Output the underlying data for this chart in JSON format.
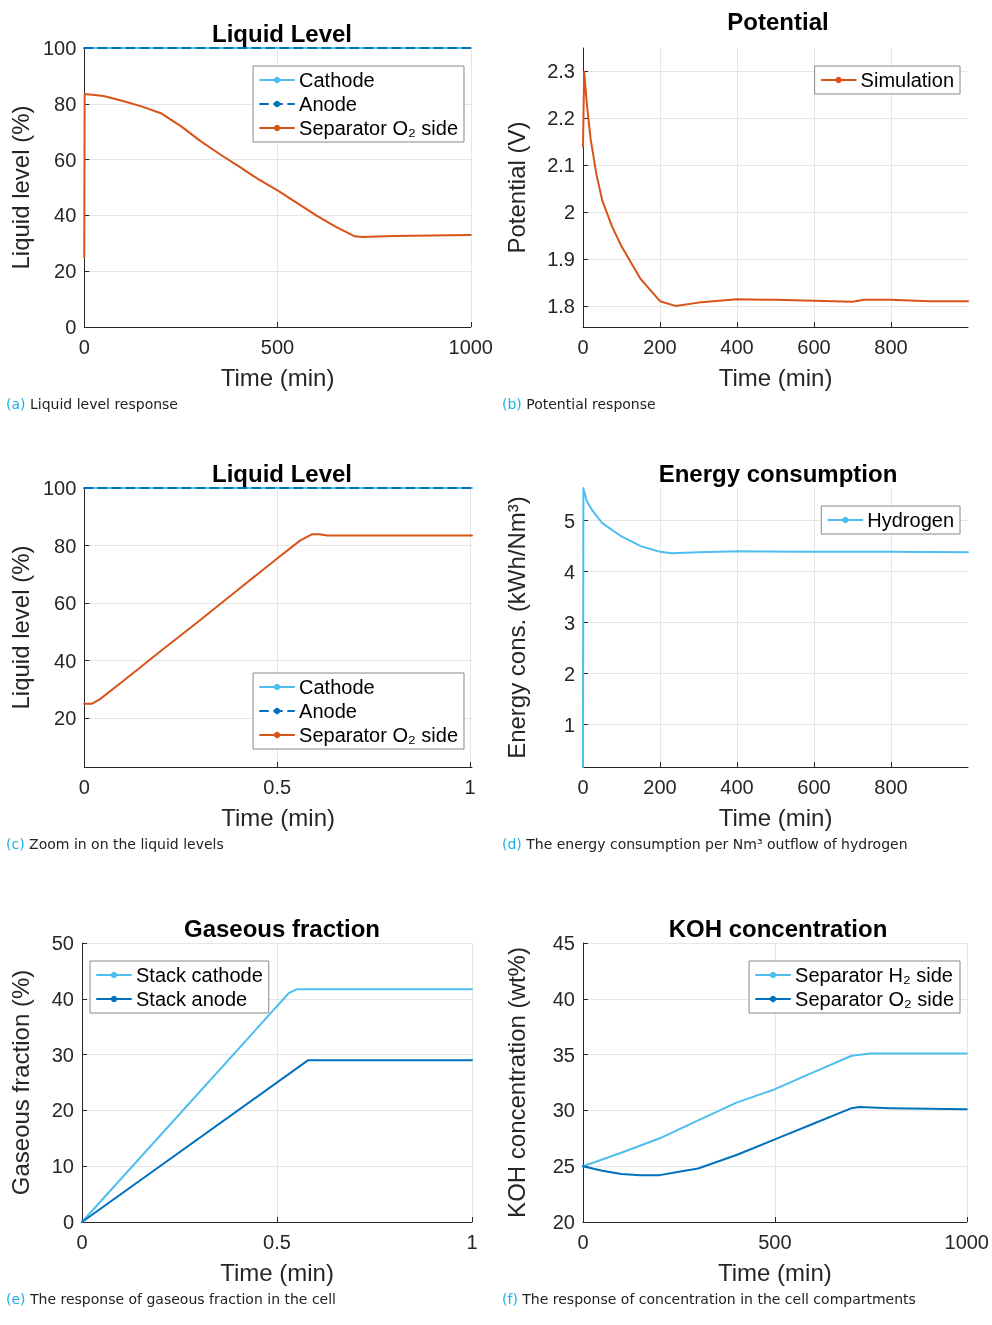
{
  "chart_data": [
    {
      "type": "line",
      "title": "Liquid Level",
      "xlabel": "Time (min)",
      "ylabel": "Liquid level (%)",
      "xlim": [
        0,
        1000
      ],
      "xticks": [
        0,
        500,
        1000
      ],
      "ylim": [
        0,
        100
      ],
      "yticks": [
        0,
        20,
        40,
        60,
        80,
        100
      ],
      "grid": true,
      "legend": "top right",
      "annotations": [
        "(a) Liquid level response"
      ],
      "series": [
        {
          "name": "Cathode",
          "color": "#4dbeee",
          "x": [
            0,
            1000
          ],
          "values": [
            100,
            100
          ]
        },
        {
          "name": "Anode",
          "color": "#0072bd",
          "line_style": "dashed",
          "x": [
            0,
            1000
          ],
          "values": [
            100,
            100
          ]
        },
        {
          "name": "Separator O₂ side",
          "color": "#d95319",
          "x": [
            0,
            1,
            50,
            100,
            150,
            200,
            250,
            300,
            350,
            400,
            450,
            500,
            550,
            600,
            650,
            700,
            720,
            800,
            1000
          ],
          "values": [
            25,
            83.5,
            82.8,
            81,
            79,
            76.5,
            72,
            66.7,
            62,
            57.6,
            53,
            49,
            44.5,
            40,
            36,
            32.5,
            32.3,
            32.6,
            33
          ]
        }
      ]
    },
    {
      "type": "line",
      "title": "Potential",
      "xlabel": "Time (min)",
      "ylabel": "Potential (V)",
      "xlim": [
        0,
        1000
      ],
      "xticks": [
        0,
        200,
        400,
        600,
        800
      ],
      "ylim": [
        1.755,
        2.35
      ],
      "yticks": [
        1.8,
        1.9,
        2,
        2.1,
        2.2,
        2.3
      ],
      "grid": true,
      "legend": "top right",
      "annotations": [
        "(b) Potential response"
      ],
      "series": [
        {
          "name": "Simulation",
          "color": "#d95319",
          "x": [
            0,
            3,
            10,
            20,
            35,
            50,
            75,
            100,
            150,
            200,
            240,
            300,
            400,
            500,
            600,
            700,
            730,
            800,
            900,
            1000
          ],
          "values": [
            2.14,
            2.3,
            2.23,
            2.155,
            2.08,
            2.025,
            1.97,
            1.927,
            1.857,
            1.81,
            1.8,
            1.807,
            1.814,
            1.813,
            1.811,
            1.809,
            1.813,
            1.813,
            1.81,
            1.81
          ]
        }
      ]
    },
    {
      "type": "line",
      "title": "Liquid Level",
      "xlabel": "Time (min)",
      "ylabel": "Liquid level (%)",
      "xlim": [
        0,
        1.005
      ],
      "xticks": [
        0,
        0.5,
        1
      ],
      "ylim": [
        3,
        100
      ],
      "yticks": [
        20,
        40,
        60,
        80,
        100
      ],
      "grid": true,
      "legend": "bottom right",
      "annotations": [
        "(c) Zoom in on the liquid levels"
      ],
      "series": [
        {
          "name": "Cathode",
          "color": "#4dbeee",
          "x": [
            0,
            1.005
          ],
          "values": [
            100,
            100
          ]
        },
        {
          "name": "Anode",
          "color": "#0072bd",
          "line_style": "dashed",
          "x": [
            0,
            1.005
          ],
          "values": [
            100,
            100
          ]
        },
        {
          "name": "Separator O₂ side",
          "color": "#d95319",
          "x": [
            0,
            0.02,
            0.04,
            0.1,
            0.2,
            0.3,
            0.4,
            0.5,
            0.56,
            0.59,
            0.61,
            0.63,
            1.005
          ],
          "values": [
            25,
            25,
            26.5,
            32.8,
            43.5,
            54,
            64.8,
            75.5,
            81.8,
            83.9,
            83.9,
            83.5,
            83.5
          ]
        }
      ]
    },
    {
      "type": "line",
      "title": "Energy consumption",
      "xlabel": "Time (min)",
      "ylabel": "Energy cons. (kWh/Nm³)",
      "xlim": [
        0,
        1000
      ],
      "xticks": [
        0,
        200,
        400,
        600,
        800
      ],
      "ylim": [
        0.17,
        5.64
      ],
      "yticks": [
        1,
        2,
        3,
        4,
        5
      ],
      "grid": true,
      "legend": "top right",
      "annotations": [
        "(d) The energy consumption per Nm³ outflow of hydrogen"
      ],
      "series": [
        {
          "name": "Hydrogen",
          "color": "#4dbeee",
          "x": [
            0,
            1,
            10,
            25,
            50,
            100,
            150,
            200,
            230,
            300,
            400,
            600,
            700,
            800,
            1000
          ],
          "values": [
            0.17,
            5.63,
            5.38,
            5.19,
            4.95,
            4.69,
            4.5,
            4.39,
            4.36,
            4.38,
            4.4,
            4.39,
            4.39,
            4.39,
            4.38
          ]
        }
      ]
    },
    {
      "type": "line",
      "title": "Gaseous fraction",
      "xlabel": "Time (min)",
      "ylabel": "Gaseous fraction (%)",
      "xlim": [
        0,
        1
      ],
      "xticks": [
        0,
        0.5,
        1
      ],
      "ylim": [
        0,
        50
      ],
      "yticks": [
        0,
        10,
        20,
        30,
        40,
        50
      ],
      "grid": true,
      "legend": "top left",
      "annotations": [
        "(e) The response of gaseous fraction in the cell"
      ],
      "series": [
        {
          "name": "Stack cathode",
          "color": "#4dbeee",
          "x": [
            0,
            0.53,
            0.55,
            1
          ],
          "values": [
            0,
            41,
            41.7,
            41.7
          ]
        },
        {
          "name": "Stack anode",
          "color": "#0072bd",
          "x": [
            0,
            0.58,
            1
          ],
          "values": [
            0,
            29,
            29
          ]
        }
      ]
    },
    {
      "type": "line",
      "title": "KOH concentration",
      "xlabel": "Time (min)",
      "ylabel": "KOH concentration (wt%)",
      "xlim": [
        0,
        1000
      ],
      "xticks": [
        0,
        500,
        1000
      ],
      "ylim": [
        20,
        45
      ],
      "yticks": [
        20,
        25,
        30,
        35,
        40,
        45
      ],
      "grid": true,
      "legend": "top right",
      "annotations": [
        "(f) The response of concentration in the cell compartments"
      ],
      "series": [
        {
          "name": "Separator H₂ side",
          "color": "#4dbeee",
          "x": [
            0,
            100,
            200,
            300,
            400,
            500,
            600,
            700,
            750,
            1000
          ],
          "values": [
            25,
            26.2,
            27.5,
            29.1,
            30.7,
            31.9,
            33.4,
            34.9,
            35.1,
            35.1
          ]
        },
        {
          "name": "Separator O₂ side",
          "color": "#0072bd",
          "x": [
            0,
            50,
            100,
            150,
            200,
            250,
            300,
            400,
            500,
            600,
            700,
            720,
            800,
            1000
          ],
          "values": [
            25,
            24.6,
            24.3,
            24.2,
            24.2,
            24.5,
            24.8,
            26,
            27.4,
            28.8,
            30.2,
            30.3,
            30.2,
            30.1
          ]
        }
      ]
    }
  ]
}
